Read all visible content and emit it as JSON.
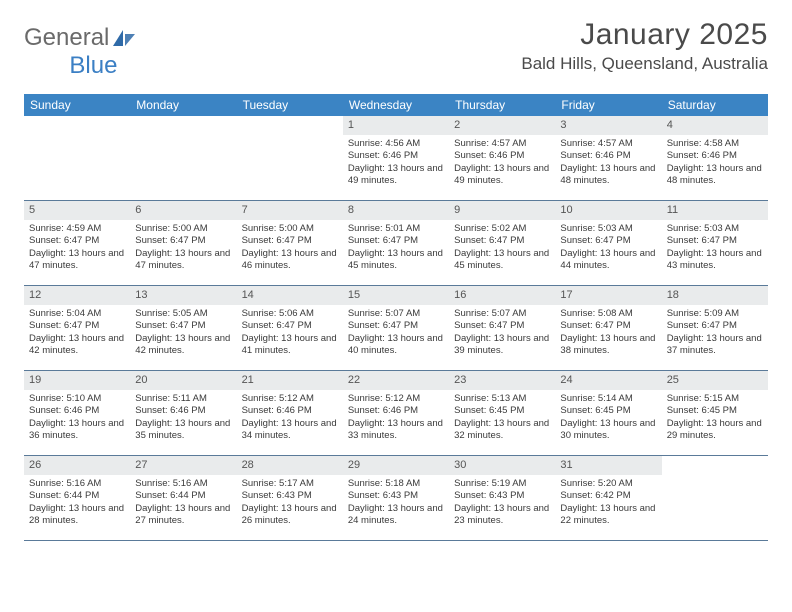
{
  "logo": {
    "text1": "General",
    "text2": "Blue"
  },
  "header": {
    "month_title": "January 2025",
    "location": "Bald Hills, Queensland, Australia"
  },
  "colors": {
    "header_bg": "#3b84c4",
    "header_text": "#ffffff",
    "daynum_bg": "#e9ebec",
    "week_border": "#5a7a99",
    "page_bg": "#ffffff",
    "body_text": "#3a3a3a"
  },
  "fonts": {
    "title_size": 30,
    "location_size": 17,
    "weekday_size": 12,
    "daynum_size": 11,
    "body_size": 9.5
  },
  "weekdays": [
    "Sunday",
    "Monday",
    "Tuesday",
    "Wednesday",
    "Thursday",
    "Friday",
    "Saturday"
  ],
  "weeks": [
    [
      null,
      null,
      null,
      {
        "n": "1",
        "sunrise": "4:56 AM",
        "sunset": "6:46 PM",
        "daylight": "13 hours and 49 minutes."
      },
      {
        "n": "2",
        "sunrise": "4:57 AM",
        "sunset": "6:46 PM",
        "daylight": "13 hours and 49 minutes."
      },
      {
        "n": "3",
        "sunrise": "4:57 AM",
        "sunset": "6:46 PM",
        "daylight": "13 hours and 48 minutes."
      },
      {
        "n": "4",
        "sunrise": "4:58 AM",
        "sunset": "6:46 PM",
        "daylight": "13 hours and 48 minutes."
      }
    ],
    [
      {
        "n": "5",
        "sunrise": "4:59 AM",
        "sunset": "6:47 PM",
        "daylight": "13 hours and 47 minutes."
      },
      {
        "n": "6",
        "sunrise": "5:00 AM",
        "sunset": "6:47 PM",
        "daylight": "13 hours and 47 minutes."
      },
      {
        "n": "7",
        "sunrise": "5:00 AM",
        "sunset": "6:47 PM",
        "daylight": "13 hours and 46 minutes."
      },
      {
        "n": "8",
        "sunrise": "5:01 AM",
        "sunset": "6:47 PM",
        "daylight": "13 hours and 45 minutes."
      },
      {
        "n": "9",
        "sunrise": "5:02 AM",
        "sunset": "6:47 PM",
        "daylight": "13 hours and 45 minutes."
      },
      {
        "n": "10",
        "sunrise": "5:03 AM",
        "sunset": "6:47 PM",
        "daylight": "13 hours and 44 minutes."
      },
      {
        "n": "11",
        "sunrise": "5:03 AM",
        "sunset": "6:47 PM",
        "daylight": "13 hours and 43 minutes."
      }
    ],
    [
      {
        "n": "12",
        "sunrise": "5:04 AM",
        "sunset": "6:47 PM",
        "daylight": "13 hours and 42 minutes."
      },
      {
        "n": "13",
        "sunrise": "5:05 AM",
        "sunset": "6:47 PM",
        "daylight": "13 hours and 42 minutes."
      },
      {
        "n": "14",
        "sunrise": "5:06 AM",
        "sunset": "6:47 PM",
        "daylight": "13 hours and 41 minutes."
      },
      {
        "n": "15",
        "sunrise": "5:07 AM",
        "sunset": "6:47 PM",
        "daylight": "13 hours and 40 minutes."
      },
      {
        "n": "16",
        "sunrise": "5:07 AM",
        "sunset": "6:47 PM",
        "daylight": "13 hours and 39 minutes."
      },
      {
        "n": "17",
        "sunrise": "5:08 AM",
        "sunset": "6:47 PM",
        "daylight": "13 hours and 38 minutes."
      },
      {
        "n": "18",
        "sunrise": "5:09 AM",
        "sunset": "6:47 PM",
        "daylight": "13 hours and 37 minutes."
      }
    ],
    [
      {
        "n": "19",
        "sunrise": "5:10 AM",
        "sunset": "6:46 PM",
        "daylight": "13 hours and 36 minutes."
      },
      {
        "n": "20",
        "sunrise": "5:11 AM",
        "sunset": "6:46 PM",
        "daylight": "13 hours and 35 minutes."
      },
      {
        "n": "21",
        "sunrise": "5:12 AM",
        "sunset": "6:46 PM",
        "daylight": "13 hours and 34 minutes."
      },
      {
        "n": "22",
        "sunrise": "5:12 AM",
        "sunset": "6:46 PM",
        "daylight": "13 hours and 33 minutes."
      },
      {
        "n": "23",
        "sunrise": "5:13 AM",
        "sunset": "6:45 PM",
        "daylight": "13 hours and 32 minutes."
      },
      {
        "n": "24",
        "sunrise": "5:14 AM",
        "sunset": "6:45 PM",
        "daylight": "13 hours and 30 minutes."
      },
      {
        "n": "25",
        "sunrise": "5:15 AM",
        "sunset": "6:45 PM",
        "daylight": "13 hours and 29 minutes."
      }
    ],
    [
      {
        "n": "26",
        "sunrise": "5:16 AM",
        "sunset": "6:44 PM",
        "daylight": "13 hours and 28 minutes."
      },
      {
        "n": "27",
        "sunrise": "5:16 AM",
        "sunset": "6:44 PM",
        "daylight": "13 hours and 27 minutes."
      },
      {
        "n": "28",
        "sunrise": "5:17 AM",
        "sunset": "6:43 PM",
        "daylight": "13 hours and 26 minutes."
      },
      {
        "n": "29",
        "sunrise": "5:18 AM",
        "sunset": "6:43 PM",
        "daylight": "13 hours and 24 minutes."
      },
      {
        "n": "30",
        "sunrise": "5:19 AM",
        "sunset": "6:43 PM",
        "daylight": "13 hours and 23 minutes."
      },
      {
        "n": "31",
        "sunrise": "5:20 AM",
        "sunset": "6:42 PM",
        "daylight": "13 hours and 22 minutes."
      },
      null
    ]
  ],
  "labels": {
    "sunrise_prefix": "Sunrise: ",
    "sunset_prefix": "Sunset: ",
    "daylight_prefix": "Daylight: "
  }
}
